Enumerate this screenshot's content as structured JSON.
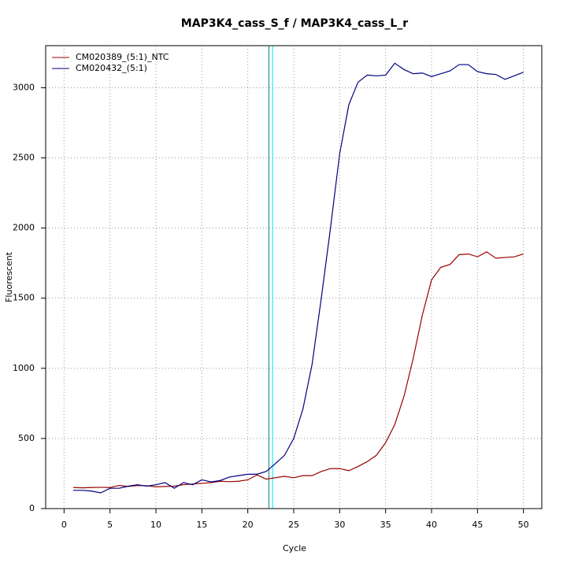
{
  "chart_data": {
    "type": "line",
    "title": "MAP3K4_cass_S_f / MAP3K4_cass_L_r",
    "x_label": "Cycle",
    "y_label": "Fluorescent",
    "x": [
      1,
      2,
      3,
      4,
      5,
      6,
      7,
      8,
      9,
      10,
      11,
      12,
      13,
      14,
      15,
      16,
      17,
      18,
      19,
      20,
      21,
      22,
      23,
      24,
      25,
      26,
      27,
      28,
      29,
      30,
      31,
      32,
      33,
      34,
      35,
      36,
      37,
      38,
      39,
      40,
      41,
      42,
      43,
      44,
      45,
      46,
      47,
      48,
      49,
      50
    ],
    "series": [
      {
        "name": "CM020389_(5:1)_NTC",
        "color": "#990000",
        "values": [
          150,
          148,
          150,
          152,
          150,
          165,
          158,
          165,
          163,
          155,
          158,
          160,
          170,
          175,
          180,
          185,
          195,
          192,
          195,
          205,
          240,
          210,
          220,
          230,
          220,
          235,
          235,
          265,
          285,
          285,
          270,
          300,
          335,
          380,
          470,
          600,
          800,
          1070,
          1380,
          1630,
          1720,
          1740,
          1810,
          1815,
          1795,
          1830,
          1785,
          1790,
          1795,
          1815
        ]
      },
      {
        "name": "CM020432_(5:1)",
        "color": "#000080",
        "values": [
          130,
          130,
          125,
          112,
          145,
          145,
          160,
          170,
          160,
          170,
          185,
          145,
          185,
          170,
          205,
          190,
          200,
          225,
          235,
          245,
          245,
          265,
          320,
          380,
          500,
          710,
          1030,
          1500,
          2000,
          2530,
          2880,
          3040,
          3090,
          3085,
          3090,
          3175,
          3130,
          3100,
          3105,
          3080,
          3100,
          3120,
          3165,
          3165,
          3115,
          3100,
          3095,
          3060,
          3085,
          3110
        ]
      }
    ],
    "vlines": [
      {
        "x": 22.3,
        "color": "#008b8b"
      },
      {
        "x": 22.7,
        "color": "#00e5ee"
      }
    ],
    "xlim": [
      -2,
      52
    ],
    "xticks": [
      0,
      5,
      10,
      15,
      20,
      25,
      30,
      35,
      40,
      45,
      50
    ],
    "ylim": [
      0,
      3300
    ],
    "yticks": [
      0,
      500,
      1000,
      1500,
      2000,
      2500,
      3000
    ],
    "grid": true,
    "legend": "top-left"
  }
}
